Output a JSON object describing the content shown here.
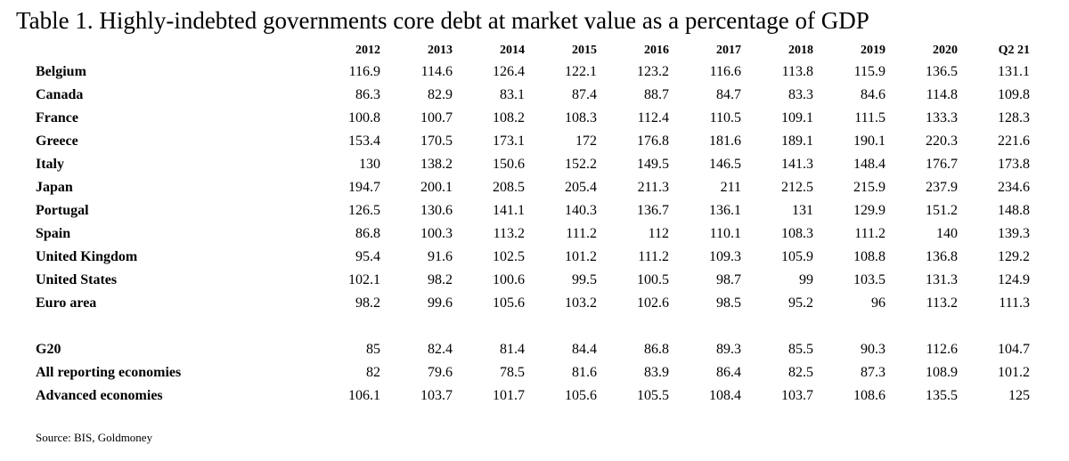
{
  "title": "Table 1. Highly-indebted governments core debt at market value as a percentage of GDP",
  "years": [
    "2012",
    "2013",
    "2014",
    "2015",
    "2016",
    "2017",
    "2018",
    "2019",
    "2020",
    "Q2 21"
  ],
  "rows": [
    {
      "name": "Belgium",
      "values": [
        "116.9",
        "114.6",
        "126.4",
        "122.1",
        "123.2",
        "116.6",
        "113.8",
        "115.9",
        "136.5",
        "131.1"
      ]
    },
    {
      "name": "Canada",
      "values": [
        "86.3",
        "82.9",
        "83.1",
        "87.4",
        "88.7",
        "84.7",
        "83.3",
        "84.6",
        "114.8",
        "109.8"
      ]
    },
    {
      "name": "France",
      "values": [
        "100.8",
        "100.7",
        "108.2",
        "108.3",
        "112.4",
        "110.5",
        "109.1",
        "111.5",
        "133.3",
        "128.3"
      ]
    },
    {
      "name": "Greece",
      "values": [
        "153.4",
        "170.5",
        "173.1",
        "172",
        "176.8",
        "181.6",
        "189.1",
        "190.1",
        "220.3",
        "221.6"
      ]
    },
    {
      "name": "Italy",
      "values": [
        "130",
        "138.2",
        "150.6",
        "152.2",
        "149.5",
        "146.5",
        "141.3",
        "148.4",
        "176.7",
        "173.8"
      ]
    },
    {
      "name": "Japan",
      "values": [
        "194.7",
        "200.1",
        "208.5",
        "205.4",
        "211.3",
        "211",
        "212.5",
        "215.9",
        "237.9",
        "234.6"
      ]
    },
    {
      "name": "Portugal",
      "values": [
        "126.5",
        "130.6",
        "141.1",
        "140.3",
        "136.7",
        "136.1",
        "131",
        "129.9",
        "151.2",
        "148.8"
      ]
    },
    {
      "name": "Spain",
      "values": [
        "86.8",
        "100.3",
        "113.2",
        "111.2",
        "112",
        "110.1",
        "108.3",
        "111.2",
        "140",
        "139.3"
      ]
    },
    {
      "name": "United Kingdom",
      "values": [
        "95.4",
        "91.6",
        "102.5",
        "101.2",
        "111.2",
        "109.3",
        "105.9",
        "108.8",
        "136.8",
        "129.2"
      ]
    },
    {
      "name": "United States",
      "values": [
        "102.1",
        "98.2",
        "100.6",
        "99.5",
        "100.5",
        "98.7",
        "99",
        "103.5",
        "131.3",
        "124.9"
      ]
    },
    {
      "name": "Euro area",
      "values": [
        "98.2",
        "99.6",
        "105.6",
        "103.2",
        "102.6",
        "98.5",
        "95.2",
        "96",
        "113.2",
        "111.3"
      ]
    }
  ],
  "aggregates": [
    {
      "name": "G20",
      "values": [
        "85",
        "82.4",
        "81.4",
        "84.4",
        "86.8",
        "89.3",
        "85.5",
        "90.3",
        "112.6",
        "104.7"
      ]
    },
    {
      "name": "All reporting economies",
      "values": [
        "82",
        "79.6",
        "78.5",
        "81.6",
        "83.9",
        "86.4",
        "82.5",
        "87.3",
        "108.9",
        "101.2"
      ]
    },
    {
      "name": "Advanced economies",
      "values": [
        "106.1",
        "103.7",
        "101.7",
        "105.6",
        "105.5",
        "108.4",
        "103.7",
        "108.6",
        "135.5",
        "125"
      ]
    }
  ],
  "source": "Source: BIS, Goldmoney"
}
